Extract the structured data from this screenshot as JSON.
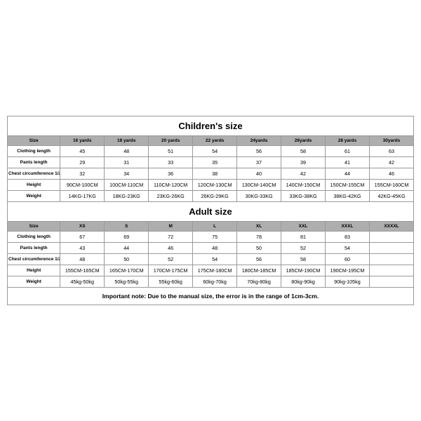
{
  "children": {
    "title": "Children's size",
    "row_labels": [
      "Size",
      "Clothing length",
      "Pants length",
      "Chest circumference 1/2",
      "Height",
      "Weight"
    ],
    "headers": [
      "16 yards",
      "18 yards",
      "20 yards",
      "22 yards",
      "24yards",
      "26yards",
      "28 yards",
      "30yards"
    ],
    "rows": [
      [
        "45",
        "48",
        "51",
        "54",
        "56",
        "58",
        "61",
        "63"
      ],
      [
        "29",
        "31",
        "33",
        "35",
        "37",
        "39",
        "41",
        "42"
      ],
      [
        "32",
        "34",
        "36",
        "38",
        "40",
        "42",
        "44",
        "46"
      ],
      [
        "90CM-100CM",
        "100CM-110CM",
        "110CM-120CM",
        "120CM-130CM",
        "130CM-140CM",
        "140CM-150CM",
        "150CM-155CM",
        "155CM-160CM"
      ],
      [
        "14KG-17KG",
        "18KG-23KG",
        "23KG-26KG",
        "26KG-29KG",
        "30KG-33KG",
        "33KG-38KG",
        "38KG-42KG",
        "42KG-45KG"
      ]
    ]
  },
  "adult": {
    "title": "Adult size",
    "row_labels": [
      "Size",
      "Clothing length",
      "Pants length",
      "Chest circumference 1/2",
      "Height",
      "Weight"
    ],
    "headers": [
      "XS",
      "S",
      "M",
      "L",
      "XL",
      "XXL",
      "XXXL",
      "XXXXL"
    ],
    "rows": [
      [
        "67",
        "69",
        "72",
        "75",
        "78",
        "81",
        "83",
        ""
      ],
      [
        "43",
        "44",
        "46",
        "48",
        "50",
        "52",
        "54",
        ""
      ],
      [
        "48",
        "50",
        "52",
        "54",
        "56",
        "58",
        "60",
        ""
      ],
      [
        "155CM-165CM",
        "165CM-170CM",
        "170CM-175CM",
        "175CM-180CM",
        "180CM-185CM",
        "185CM-190CM",
        "190CM-195CM",
        ""
      ],
      [
        "45kg-50kg",
        "50kg-55kg",
        "55kg-60kg",
        "60kg-70kg",
        "70kg-80kg",
        "80kg-90kg",
        "90kg-105kg",
        ""
      ]
    ]
  },
  "note": "Important note: Due to the manual size, the error is in the range of 1cm-3cm.",
  "colors": {
    "header_bg": "#aeaeae",
    "border": "#9a9a9a",
    "text": "#000000",
    "bg": "#ffffff"
  }
}
